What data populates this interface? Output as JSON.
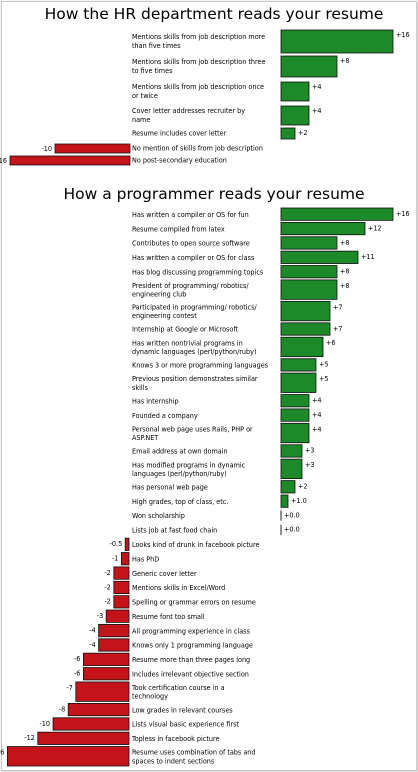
{
  "chart_data": [
    {
      "type": "bar",
      "orientation": "horizontal",
      "title": "How the HR department reads your resume",
      "colors": {
        "positive": "#1c8a28",
        "negative": "#c4141a"
      },
      "categories": [
        [
          "Mentions skills from job description more",
          "than five times"
        ],
        [
          "Mentions skills from job description three",
          "to five times"
        ],
        [
          "Mentions skills from job description once",
          "or twice"
        ],
        [
          "Cover letter addresses recruiter by",
          "name"
        ],
        [
          "Resume includes cover letter"
        ],
        [
          "No mention of skills from job description"
        ],
        [
          "No post-secondary education"
        ]
      ],
      "values": [
        16,
        8,
        4,
        4,
        2,
        -10,
        -16
      ],
      "value_labels": [
        "+16",
        "+8",
        "+4",
        "+4",
        "+2",
        "-10",
        "-16"
      ]
    },
    {
      "type": "bar",
      "orientation": "horizontal",
      "title": "How a programmer reads your resume",
      "colors": {
        "positive": "#1c8a28",
        "negative": "#c4141a"
      },
      "categories": [
        [
          "Has written a compiler or OS for fun"
        ],
        [
          "Resume compiled from latex"
        ],
        [
          "Contributes to open source software"
        ],
        [
          "Has written a compiler or OS for class"
        ],
        [
          "Has blog discussing programming topics"
        ],
        [
          "President of programming/ robotics/",
          "engineering club"
        ],
        [
          "Participated in programming/ robotics/",
          "engineering contest"
        ],
        [
          "Internship at Google or Microsoft"
        ],
        [
          "Has written nontrivial programs in",
          "dynamic languages (perl/python/ruby)"
        ],
        [
          "Knows 3 or more programming languages"
        ],
        [
          "Previous position demonstrates similar",
          "skills"
        ],
        [
          "Has internship"
        ],
        [
          "Founded a company"
        ],
        [
          "Personal web page uses Rails, PHP or",
          "ASP.NET"
        ],
        [
          "Email address at own domain"
        ],
        [
          "Has modified programs in dynamic",
          "languages (perl/python/ruby)"
        ],
        [
          "Has personal web page"
        ],
        [
          "High grades, top of class, etc."
        ],
        [
          "Won scholarship"
        ],
        [
          "Lists job at fast food chain"
        ],
        [
          "Looks kind of drunk in facebook picture"
        ],
        [
          "Has PhD"
        ],
        [
          "Generic cover letter"
        ],
        [
          "Mentions skills in Excel/Word"
        ],
        [
          "Spelling or grammar errors on resume"
        ],
        [
          "Resume font too small"
        ],
        [
          "All programming experience in class"
        ],
        [
          "Knows only 1 programming language"
        ],
        [
          "Resume more than three pages long"
        ],
        [
          "Includes irrelevant objective section"
        ],
        [
          "Took certification course in a",
          "technology"
        ],
        [
          "Low grades in relevant courses"
        ],
        [
          "Lists visual basic experience first"
        ],
        [
          "Topless in facebook picture"
        ],
        [
          "Resume uses combination of tabs and",
          "spaces to indent sections"
        ]
      ],
      "values": [
        16,
        12,
        8,
        11,
        8,
        8,
        7,
        7,
        6,
        5,
        5,
        4,
        4,
        4,
        3,
        3,
        2,
        1.0,
        0.0,
        0.0,
        -0.5,
        -1,
        -2,
        -2,
        -2,
        -3,
        -4,
        -4,
        -6,
        -6,
        -7,
        -8,
        -10,
        -12,
        -16
      ],
      "value_labels": [
        "+16",
        "+12",
        "+8",
        "+11",
        "+8",
        "+8",
        "+7",
        "+7",
        "+6",
        "+5",
        "+5",
        "+4",
        "+4",
        "+4",
        "+3",
        "+3",
        "+2",
        "+1.0",
        "+0.0",
        "+0.0",
        "-0.5",
        "-1",
        "-2",
        "-2",
        "-2",
        "-3",
        "-4",
        "-4",
        "-6",
        "-6",
        "-7",
        "-8",
        "-10",
        "-12",
        "-16"
      ]
    }
  ]
}
